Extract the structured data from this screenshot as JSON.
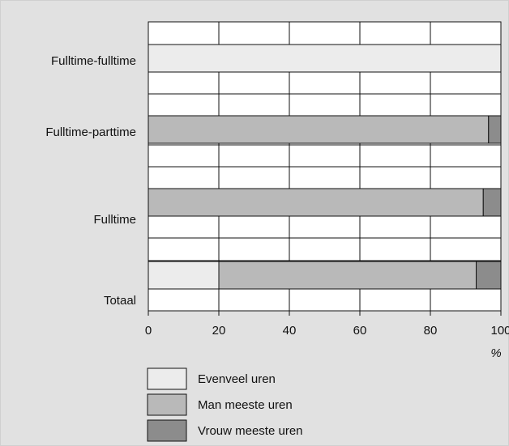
{
  "chart_data": {
    "type": "bar",
    "orientation": "horizontal",
    "stacked": true,
    "categories": [
      "Fulltime-fulltime",
      "Fulltime-parttime",
      "Fulltime",
      "Totaal"
    ],
    "series": [
      {
        "name": "Evenveel uren",
        "values": [
          100,
          0,
          0,
          20
        ],
        "color": "#ececec"
      },
      {
        "name": "Man meeste uren",
        "values": [
          0,
          96.5,
          95,
          73
        ],
        "color": "#b9b9b9"
      },
      {
        "name": "Vrouw meeste uren",
        "values": [
          0,
          3.5,
          5,
          7
        ],
        "color": "#8c8c8c"
      }
    ],
    "xlim": [
      0,
      100
    ],
    "x_ticks": [
      "0",
      "20",
      "40",
      "60",
      "80",
      "100"
    ],
    "unit_label": "%",
    "grid": true,
    "legend_position": "bottom"
  }
}
